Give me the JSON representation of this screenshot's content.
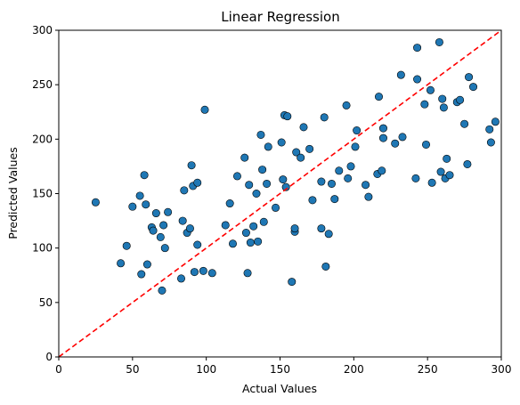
{
  "chart_data": {
    "type": "scatter",
    "title": "Linear Regression",
    "xlabel": "Actual Values",
    "ylabel": "Predicted Values",
    "xlim": [
      0,
      300
    ],
    "ylim": [
      0,
      300
    ],
    "xticks": [
      0,
      50,
      100,
      150,
      200,
      250,
      300
    ],
    "yticks": [
      0,
      50,
      100,
      150,
      200,
      250,
      300
    ],
    "grid": false,
    "legend": "none",
    "colors": {
      "points": "#1f77b4",
      "point_edge": "#000000",
      "reference_line": "#ff0000"
    },
    "reference_line": {
      "style": "dashed",
      "from": [
        0,
        0
      ],
      "to": [
        300,
        300
      ]
    },
    "points": [
      {
        "x": 25,
        "y": 142
      },
      {
        "x": 42,
        "y": 86
      },
      {
        "x": 46,
        "y": 102
      },
      {
        "x": 50,
        "y": 138
      },
      {
        "x": 55,
        "y": 148
      },
      {
        "x": 56,
        "y": 76
      },
      {
        "x": 58,
        "y": 167
      },
      {
        "x": 59,
        "y": 140
      },
      {
        "x": 60,
        "y": 85
      },
      {
        "x": 63,
        "y": 119
      },
      {
        "x": 64,
        "y": 116
      },
      {
        "x": 66,
        "y": 132
      },
      {
        "x": 69,
        "y": 110
      },
      {
        "x": 70,
        "y": 61
      },
      {
        "x": 71,
        "y": 121
      },
      {
        "x": 72,
        "y": 100
      },
      {
        "x": 74,
        "y": 133
      },
      {
        "x": 83,
        "y": 72
      },
      {
        "x": 84,
        "y": 125
      },
      {
        "x": 85,
        "y": 153
      },
      {
        "x": 87,
        "y": 114
      },
      {
        "x": 89,
        "y": 118
      },
      {
        "x": 90,
        "y": 176
      },
      {
        "x": 91,
        "y": 157
      },
      {
        "x": 92,
        "y": 78
      },
      {
        "x": 94,
        "y": 103
      },
      {
        "x": 94,
        "y": 160
      },
      {
        "x": 98,
        "y": 79
      },
      {
        "x": 99,
        "y": 227
      },
      {
        "x": 104,
        "y": 77
      },
      {
        "x": 113,
        "y": 121
      },
      {
        "x": 116,
        "y": 141
      },
      {
        "x": 118,
        "y": 104
      },
      {
        "x": 121,
        "y": 166
      },
      {
        "x": 126,
        "y": 183
      },
      {
        "x": 127,
        "y": 114
      },
      {
        "x": 128,
        "y": 77
      },
      {
        "x": 129,
        "y": 158
      },
      {
        "x": 130,
        "y": 105
      },
      {
        "x": 132,
        "y": 120
      },
      {
        "x": 134,
        "y": 150
      },
      {
        "x": 135,
        "y": 106
      },
      {
        "x": 137,
        "y": 204
      },
      {
        "x": 138,
        "y": 172
      },
      {
        "x": 139,
        "y": 124
      },
      {
        "x": 141,
        "y": 159
      },
      {
        "x": 142,
        "y": 193
      },
      {
        "x": 147,
        "y": 137
      },
      {
        "x": 151,
        "y": 197
      },
      {
        "x": 152,
        "y": 163
      },
      {
        "x": 153,
        "y": 222
      },
      {
        "x": 154,
        "y": 156
      },
      {
        "x": 155,
        "y": 221
      },
      {
        "x": 158,
        "y": 69
      },
      {
        "x": 160,
        "y": 115
      },
      {
        "x": 160,
        "y": 118
      },
      {
        "x": 161,
        "y": 188
      },
      {
        "x": 164,
        "y": 183
      },
      {
        "x": 166,
        "y": 211
      },
      {
        "x": 170,
        "y": 191
      },
      {
        "x": 172,
        "y": 144
      },
      {
        "x": 178,
        "y": 161
      },
      {
        "x": 178,
        "y": 118
      },
      {
        "x": 180,
        "y": 220
      },
      {
        "x": 181,
        "y": 83
      },
      {
        "x": 183,
        "y": 113
      },
      {
        "x": 185,
        "y": 159
      },
      {
        "x": 187,
        "y": 145
      },
      {
        "x": 190,
        "y": 171
      },
      {
        "x": 195,
        "y": 231
      },
      {
        "x": 196,
        "y": 164
      },
      {
        "x": 198,
        "y": 175
      },
      {
        "x": 201,
        "y": 193
      },
      {
        "x": 202,
        "y": 208
      },
      {
        "x": 208,
        "y": 158
      },
      {
        "x": 210,
        "y": 147
      },
      {
        "x": 216,
        "y": 168
      },
      {
        "x": 217,
        "y": 239
      },
      {
        "x": 219,
        "y": 171
      },
      {
        "x": 220,
        "y": 210
      },
      {
        "x": 220,
        "y": 201
      },
      {
        "x": 228,
        "y": 196
      },
      {
        "x": 232,
        "y": 259
      },
      {
        "x": 233,
        "y": 202
      },
      {
        "x": 242,
        "y": 164
      },
      {
        "x": 243,
        "y": 284
      },
      {
        "x": 243,
        "y": 255
      },
      {
        "x": 248,
        "y": 232
      },
      {
        "x": 249,
        "y": 195
      },
      {
        "x": 252,
        "y": 245
      },
      {
        "x": 253,
        "y": 160
      },
      {
        "x": 258,
        "y": 289
      },
      {
        "x": 259,
        "y": 170
      },
      {
        "x": 260,
        "y": 237
      },
      {
        "x": 261,
        "y": 229
      },
      {
        "x": 262,
        "y": 164
      },
      {
        "x": 263,
        "y": 182
      },
      {
        "x": 265,
        "y": 167
      },
      {
        "x": 270,
        "y": 234
      },
      {
        "x": 272,
        "y": 236
      },
      {
        "x": 275,
        "y": 214
      },
      {
        "x": 277,
        "y": 177
      },
      {
        "x": 278,
        "y": 257
      },
      {
        "x": 281,
        "y": 248
      },
      {
        "x": 292,
        "y": 209
      },
      {
        "x": 293,
        "y": 197
      },
      {
        "x": 296,
        "y": 216
      }
    ]
  }
}
